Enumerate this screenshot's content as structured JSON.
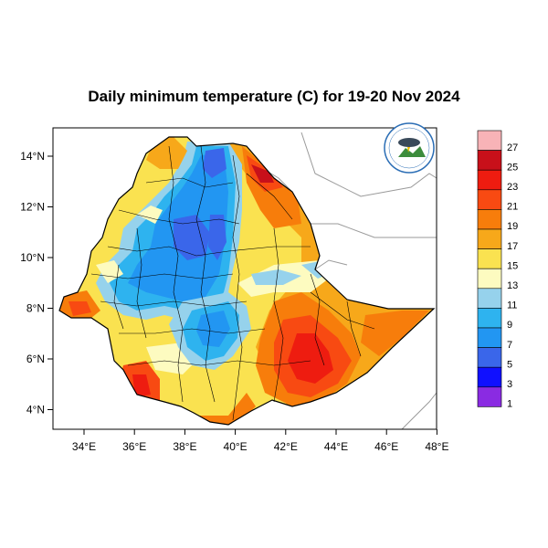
{
  "title": "Daily minimum temperature (C) for 19-20 Nov 2024",
  "axes": {
    "lon_labels": [
      "34°E",
      "36°E",
      "38°E",
      "40°E",
      "42°E",
      "44°E",
      "46°E",
      "48°E"
    ],
    "lat_labels": [
      "14°N",
      "12°N",
      "10°N",
      "8°N",
      "6°N",
      "4°N"
    ]
  },
  "colorbar": {
    "labels": [
      "27",
      "25",
      "23",
      "21",
      "19",
      "17",
      "15",
      "13",
      "11",
      "9",
      "7",
      "5",
      "3",
      "1"
    ],
    "colors": [
      "#f8b3b7",
      "#c8101a",
      "#ee1c10",
      "#f84a12",
      "#f77d0b",
      "#f7a81a",
      "#fae250",
      "#fdfbc0",
      "#96d2ec",
      "#2eb3ef",
      "#2296f2",
      "#3a66ea",
      "#1010ff",
      "#8a2be2"
    ]
  },
  "logo": {
    "name": "ethiopia-meteorology-institute-logo",
    "text": "Ethiopian Meteorology Institute"
  }
}
